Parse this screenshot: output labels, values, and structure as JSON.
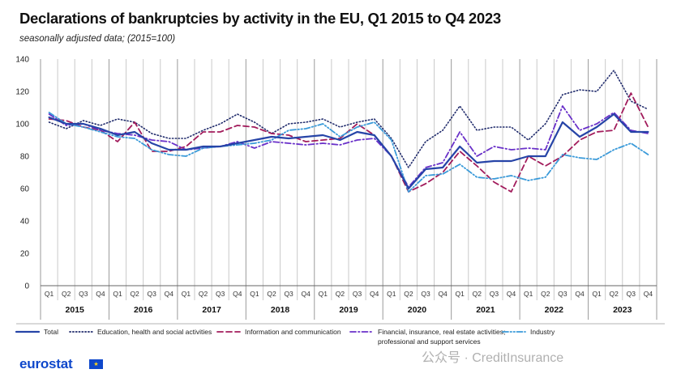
{
  "chart_data": {
    "type": "line",
    "title": "Declarations of bankruptcies by activity in the EU, Q1 2015 to Q4 2023",
    "subtitle": "seasonally adjusted data; (2015=100)",
    "xlabel": "",
    "ylabel": "",
    "ylim": [
      0,
      140
    ],
    "yticks": [
      0,
      20,
      40,
      60,
      80,
      100,
      120,
      140
    ],
    "grid": "vertical",
    "legend_position": "bottom",
    "quarters": [
      "Q1",
      "Q2",
      "Q3",
      "Q4"
    ],
    "years": [
      "2015",
      "2016",
      "2017",
      "2018",
      "2019",
      "2020",
      "2021",
      "2022",
      "2023"
    ],
    "series": [
      {
        "name": "Total",
        "color": "#2644a7",
        "dash": "solid",
        "values": [
          104,
          100,
          100,
          97,
          93,
          95,
          88,
          84,
          84,
          86,
          86,
          88,
          90,
          92,
          91,
          92,
          93,
          90,
          95,
          93,
          80,
          60,
          72,
          73,
          86,
          76,
          77,
          77,
          80,
          80,
          101,
          92,
          98,
          106,
          95,
          95
        ]
      },
      {
        "name": "Education, health and social activities",
        "color": "#1f2a6b",
        "dash": "dot",
        "values": [
          101,
          97,
          102,
          99,
          103,
          101,
          94,
          91,
          91,
          96,
          100,
          106,
          101,
          94,
          100,
          101,
          103,
          98,
          101,
          103,
          91,
          73,
          89,
          96,
          111,
          96,
          98,
          98,
          90,
          100,
          118,
          121,
          120,
          133,
          114,
          109
        ]
      },
      {
        "name": "Information and communication",
        "color": "#a21c5c",
        "dash": "dash",
        "values": [
          103,
          102,
          98,
          96,
          89,
          101,
          83,
          83,
          86,
          95,
          95,
          99,
          98,
          94,
          93,
          89,
          90,
          91,
          100,
          93,
          80,
          58,
          63,
          70,
          83,
          74,
          64,
          58,
          80,
          74,
          80,
          90,
          95,
          96,
          119,
          98
        ]
      },
      {
        "name": "Financial, insurance, real estate activities; professional and support services",
        "color": "#6a31c9",
        "dash": "dashdot",
        "values": [
          106,
          99,
          100,
          96,
          94,
          93,
          90,
          89,
          84,
          85,
          86,
          89,
          85,
          89,
          88,
          87,
          88,
          87,
          90,
          91,
          80,
          61,
          73,
          76,
          95,
          80,
          86,
          84,
          85,
          84,
          111,
          96,
          100,
          107,
          96,
          94
        ]
      },
      {
        "name": "Industry",
        "color": "#3a9ad9",
        "dash": "dashdotdot",
        "values": [
          107,
          100,
          98,
          95,
          92,
          91,
          84,
          81,
          80,
          85,
          86,
          87,
          88,
          90,
          96,
          97,
          100,
          92,
          98,
          101,
          90,
          58,
          68,
          69,
          75,
          67,
          66,
          68,
          65,
          67,
          81,
          79,
          78,
          84,
          88,
          81
        ]
      }
    ],
    "legend_second_line": "professional and support services",
    "legend_first_line_financial": "Financial, insurance, real estate activities;"
  },
  "footer": {
    "logo": "eurostat",
    "watermark": "公众号 · CreditInsurance"
  }
}
